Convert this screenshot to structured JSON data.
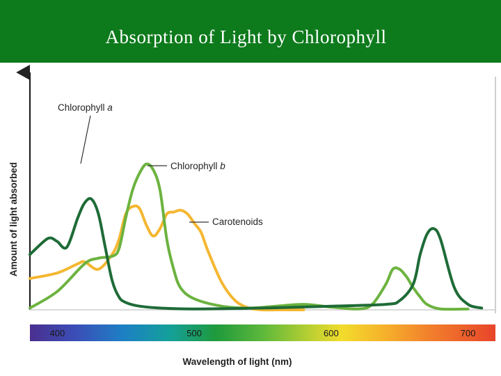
{
  "header": {
    "title": "Absorption of Light by Chlorophyll"
  },
  "colors": {
    "banner": "#0d7a1c",
    "chlorophyll_a": "#1e6b37",
    "chlorophyll_b": "#6cb33f",
    "carotenoids": "#f4b731"
  },
  "chart_data": {
    "type": "line",
    "title": "",
    "xlabel": "Wavelength of light (nm)",
    "ylabel": "Amount of light absorbed",
    "xlim": [
      380,
      720
    ],
    "ylim": [
      0,
      100
    ],
    "grid": false,
    "legend": "annotations",
    "x_ticks": [
      "400",
      "500",
      "600",
      "700"
    ],
    "spectrum_bar": true,
    "annotations": [
      {
        "text": "Chlorophyll a",
        "italic_suffix": "a",
        "plain_prefix": "Chlorophyll "
      },
      {
        "text": "Chlorophyll b",
        "italic_suffix": "b",
        "plain_prefix": "Chlorophyll "
      },
      {
        "text": "Carotenoids"
      }
    ],
    "series": [
      {
        "name": "Chlorophyll a",
        "color": "#1e6b37",
        "x": [
          380,
          390,
          395,
          400,
          407,
          415,
          420,
          425,
          430,
          435,
          440,
          445,
          450,
          460,
          475,
          500,
          550,
          600,
          640,
          650,
          660,
          665,
          670,
          675,
          680,
          690,
          700,
          710
        ],
        "y": [
          30,
          37,
          39,
          37,
          34,
          50,
          58,
          60,
          52,
          34,
          16,
          7,
          4,
          2,
          1,
          0.5,
          1,
          2,
          3,
          5,
          14,
          30,
          41,
          44,
          38,
          12,
          3,
          1
        ]
      },
      {
        "name": "Chlorophyll b",
        "color": "#6cb33f",
        "x": [
          380,
          400,
          420,
          430,
          440,
          445,
          450,
          455,
          460,
          465,
          470,
          475,
          480,
          485,
          490,
          500,
          520,
          540,
          560,
          580,
          600,
          620,
          630,
          640,
          645,
          650,
          655,
          660,
          665,
          670,
          680,
          700
        ],
        "y": [
          1,
          10,
          25,
          28,
          29,
          33,
          50,
          65,
          74,
          79,
          76,
          65,
          38,
          22,
          12,
          6,
          2,
          1,
          2,
          3,
          1.5,
          0.5,
          3,
          14,
          22,
          22,
          18,
          12,
          7,
          3,
          0.5,
          0.5
        ]
      },
      {
        "name": "Carotenoids",
        "color": "#f4b731",
        "x": [
          380,
          400,
          415,
          420,
          430,
          440,
          445,
          450,
          455,
          460,
          465,
          470,
          475,
          480,
          485,
          490,
          495,
          500,
          505,
          510,
          520,
          530,
          540,
          550,
          560,
          570,
          580
        ],
        "y": [
          17,
          20,
          25,
          26,
          22,
          30,
          38,
          52,
          56,
          55,
          46,
          40,
          44,
          52,
          53,
          54,
          52,
          47,
          42,
          32,
          15,
          5,
          1,
          0,
          0,
          0,
          0
        ]
      }
    ]
  }
}
